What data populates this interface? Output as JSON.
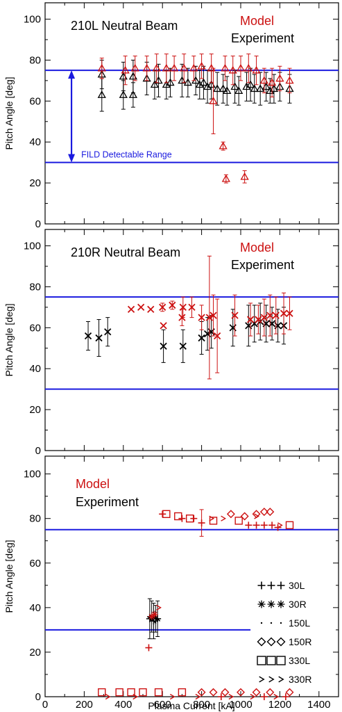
{
  "colors": {
    "model": "#cc1111",
    "experiment": "#000000",
    "range": "#1a1adf",
    "axis": "#000000"
  },
  "shared": {
    "xlabel": "Plasma Current [kA]",
    "ylabel": "Pitch Angle [deg]",
    "xlim": [
      0,
      1500
    ],
    "ylim": [
      0,
      108
    ],
    "xticks": [
      0,
      200,
      400,
      600,
      800,
      1000,
      1200,
      1400
    ],
    "yticks": [
      0,
      20,
      40,
      60,
      80,
      100
    ]
  },
  "chart_data": [
    {
      "type": "scatter",
      "title": "210L Neutral Beam",
      "legend": {
        "model": "Model",
        "experiment": "Experiment"
      },
      "hlines": [
        75,
        30
      ],
      "annotation": {
        "text": "FILD Detectable Range",
        "x": 135,
        "y_from": 30,
        "y_to": 75
      },
      "series": [
        {
          "name": "Experiment",
          "marker": "triangle",
          "color": "experiment",
          "x": [
            290,
            290,
            400,
            400,
            450,
            450,
            520,
            560,
            580,
            620,
            640,
            700,
            730,
            770,
            790,
            810,
            830,
            850,
            880,
            910,
            930,
            970,
            990,
            1030,
            1050,
            1070,
            1100,
            1130,
            1150,
            1170,
            1200,
            1250
          ],
          "y": [
            73,
            63,
            72,
            63,
            72,
            63,
            71,
            68,
            70,
            68,
            69,
            70,
            69,
            70,
            68,
            69,
            67,
            68,
            66,
            66,
            65,
            67,
            65,
            67,
            68,
            66,
            66,
            67,
            65,
            66,
            67,
            66
          ],
          "err": [
            7,
            8,
            7,
            7,
            8,
            6,
            8,
            7,
            8,
            7,
            7,
            8,
            7,
            7,
            7,
            8,
            8,
            7,
            8,
            7,
            7,
            8,
            7,
            7,
            8,
            7,
            8,
            7,
            6,
            7,
            7,
            7
          ]
        },
        {
          "name": "Model",
          "marker": "triangle",
          "color": "model",
          "x": [
            290,
            410,
            460,
            520,
            570,
            620,
            660,
            710,
            760,
            800,
            850,
            860,
            910,
            920,
            960,
            1000,
            1040,
            1080,
            1120,
            1160,
            1200,
            1250
          ],
          "y": [
            76,
            75,
            76,
            76,
            76,
            76,
            76,
            76,
            76,
            77,
            76,
            60,
            38,
            76,
            75,
            76,
            76,
            75,
            70,
            69,
            71,
            70
          ],
          "err": [
            5,
            7,
            6,
            6,
            7,
            7,
            6,
            7,
            6,
            6,
            7,
            16,
            2,
            6,
            7,
            6,
            7,
            7,
            6,
            7,
            6,
            6
          ]
        },
        {
          "name": "Model (low)",
          "marker": "triangle",
          "color": "model",
          "x": [
            925,
            1020
          ],
          "y": [
            22,
            23
          ],
          "err": [
            2,
            3
          ]
        }
      ]
    },
    {
      "type": "scatter",
      "title": "210R Neutral Beam",
      "legend": {
        "model": "Model",
        "experiment": "Experiment"
      },
      "hlines": [
        75,
        30
      ],
      "series": [
        {
          "name": "Experiment",
          "marker": "x",
          "color": "experiment",
          "x": [
            220,
            275,
            320,
            605,
            705,
            800,
            830,
            850,
            960,
            1040,
            1070,
            1100,
            1130,
            1160,
            1190,
            1220
          ],
          "y": [
            56,
            55,
            58,
            51,
            51,
            55,
            57,
            58,
            60,
            61,
            62,
            63,
            62,
            62,
            61,
            61
          ],
          "err": [
            7,
            9,
            7,
            8,
            8,
            8,
            8,
            8,
            9,
            10,
            9,
            9,
            9,
            8,
            8,
            9
          ]
        },
        {
          "name": "Model",
          "marker": "x",
          "color": "model",
          "x": [
            440,
            490,
            540,
            600,
            605,
            650,
            700,
            705,
            750,
            800,
            840,
            860,
            880,
            970,
            1050,
            1090,
            1120,
            1150,
            1180,
            1220,
            1250
          ],
          "y": [
            69,
            70,
            69,
            70,
            61,
            71,
            65,
            70,
            70,
            65,
            65,
            66,
            56,
            66,
            64,
            64,
            65,
            66,
            66,
            67,
            67
          ],
          "err": [
            0,
            0,
            0,
            2,
            0,
            2,
            4,
            5,
            5,
            6,
            30,
            10,
            18,
            10,
            8,
            7,
            9,
            10,
            9,
            10,
            8
          ]
        }
      ]
    },
    {
      "type": "scatter",
      "legend": {
        "model": "Model",
        "experiment": "Experiment"
      },
      "hlines": [
        75,
        30
      ],
      "hline_extent": {
        "30": [
          0,
          1050
        ]
      },
      "marker_legend": [
        {
          "marker": "plus",
          "label": "30L"
        },
        {
          "marker": "star",
          "label": "30R"
        },
        {
          "marker": "dot",
          "label": "150L"
        },
        {
          "marker": "diamond",
          "label": "150R"
        },
        {
          "marker": "square",
          "label": "330L"
        },
        {
          "marker": "chevron",
          "label": "330R"
        }
      ],
      "series": [
        {
          "name": "Experiment",
          "marker": "mixed",
          "color": "experiment",
          "x": [
            535,
            545,
            555,
            565,
            575
          ],
          "y": [
            35,
            36,
            34,
            35,
            35
          ],
          "err": [
            9,
            7,
            8,
            6,
            8
          ]
        },
        {
          "name": "Model square",
          "marker": "square",
          "color": "model",
          "x": [
            620,
            680,
            740,
            860,
            990,
            1250,
            290,
            380,
            440,
            500,
            580,
            700
          ],
          "y": [
            82,
            81,
            80,
            79,
            79,
            77,
            2,
            2,
            2,
            2,
            2,
            2
          ]
        },
        {
          "name": "Model diamond",
          "marker": "diamond",
          "color": "model",
          "x": [
            950,
            1020,
            1080,
            1120,
            1150,
            800,
            860,
            920,
            1000,
            1080,
            1150,
            1250
          ],
          "y": [
            82,
            81,
            82,
            83,
            83,
            2,
            2,
            2,
            2,
            2,
            2,
            2
          ]
        },
        {
          "name": "Model plus",
          "marker": "plus",
          "color": "model",
          "x": [
            600,
            700,
            760,
            800,
            1040,
            1080,
            1120,
            1160,
            1190,
            530,
            900,
            1120,
            1230
          ],
          "y": [
            82,
            80,
            80,
            78,
            77,
            77,
            77,
            77,
            76,
            22,
            0,
            0,
            0
          ],
          "err": [
            0,
            0,
            0,
            6,
            0,
            0,
            0,
            0,
            0,
            0,
            0,
            0,
            0
          ]
        },
        {
          "name": "Model chevron",
          "marker": "chevron",
          "color": "model",
          "x": [
            850,
            910,
            1080,
            1200,
            580,
            320,
            460,
            650,
            780,
            950,
            1060,
            1180
          ],
          "y": [
            80,
            80,
            81,
            77,
            40,
            0,
            0,
            0,
            0,
            0,
            0,
            0
          ]
        },
        {
          "name": "Model star",
          "marker": "star",
          "color": "model",
          "x": [
            545,
            560
          ],
          "y": [
            36,
            37
          ]
        }
      ]
    }
  ]
}
